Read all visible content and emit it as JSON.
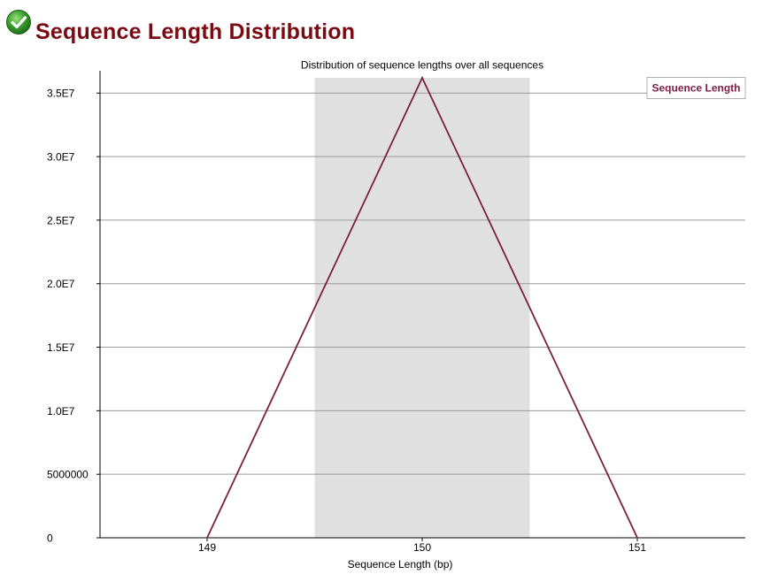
{
  "header": {
    "title": "Sequence Length Distribution",
    "status_icon": "check-circle-icon",
    "status_color": "#3aa02e"
  },
  "chart_data": {
    "type": "line",
    "title": "Distribution of sequence lengths over all sequences",
    "xlabel": "Sequence Length (bp)",
    "ylabel": "",
    "categories": [
      "149",
      "150",
      "151"
    ],
    "series": [
      {
        "name": "Sequence Length",
        "color": "#7b1f42",
        "values": [
          0,
          36200000,
          0
        ]
      }
    ],
    "ylim": [
      0,
      36200000
    ],
    "yticks": [
      0,
      5000000,
      10000000,
      15000000,
      20000000,
      25000000,
      30000000,
      35000000
    ],
    "ytick_labels": [
      "0",
      "5000000",
      "1.0E7",
      "1.5E7",
      "2.0E7",
      "2.5E7",
      "3.0E7",
      "3.5E7"
    ],
    "highlight_band": {
      "from": 149.5,
      "to": 150.5,
      "color": "#e0e0e0"
    },
    "grid": true,
    "legend": "top-right"
  }
}
